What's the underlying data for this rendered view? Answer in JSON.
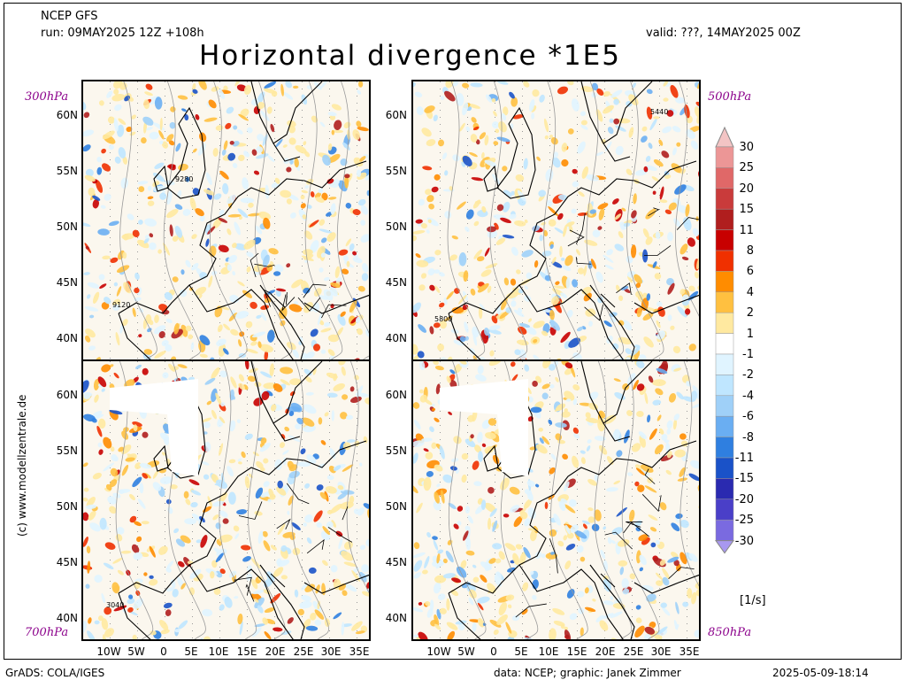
{
  "header": {
    "model": "NCEP GFS",
    "run": "run: 09MAY2025 12Z +108h",
    "valid": "valid: ???, 14MAY2025 00Z",
    "title": "Horizontal divergence *1E5"
  },
  "panels": [
    {
      "level": "300hPa",
      "contour_label_a": "9280",
      "contour_label_b": "9120"
    },
    {
      "level": "500hPa",
      "contour_label_a": "5440",
      "contour_label_b": "5800"
    },
    {
      "level": "700hPa",
      "contour_label_a": "3040",
      "contour_label_b": ""
    },
    {
      "level": "850hPa",
      "contour_label_a": "",
      "contour_label_b": ""
    }
  ],
  "axes": {
    "lat_labels": [
      "60N",
      "55N",
      "50N",
      "45N",
      "40N"
    ],
    "lon_labels": [
      "10W",
      "5W",
      "0",
      "5E",
      "10E",
      "15E",
      "20E",
      "25E",
      "30E",
      "35E"
    ]
  },
  "colorbar": {
    "unit": "[1/s]",
    "levels": [
      "30",
      "25",
      "20",
      "15",
      "11",
      "8",
      "6",
      "4",
      "2",
      "1",
      "-1",
      "-2",
      "-4",
      "-6",
      "-8",
      "-11",
      "-15",
      "-20",
      "-25",
      "-30"
    ],
    "colors": [
      "#f3c4c4",
      "#ec9696",
      "#e06868",
      "#c93b3b",
      "#b01e1e",
      "#c80000",
      "#f03000",
      "#ff8c00",
      "#ffc040",
      "#ffe9a0",
      "#ffffff",
      "#e0f4ff",
      "#bfe6ff",
      "#9fd0f8",
      "#6aaef2",
      "#2f7fe0",
      "#1a52c8",
      "#2a2ab0",
      "#4a3fc8",
      "#7a6ae0",
      "#a898f0"
    ]
  },
  "footer": {
    "left": "GrADS: COLA/IGES",
    "middle": "data: NCEP; graphic: Janek Zimmer",
    "right": "2025-05-09-18:14",
    "credit": "(c) www.modellzentrale.de"
  }
}
